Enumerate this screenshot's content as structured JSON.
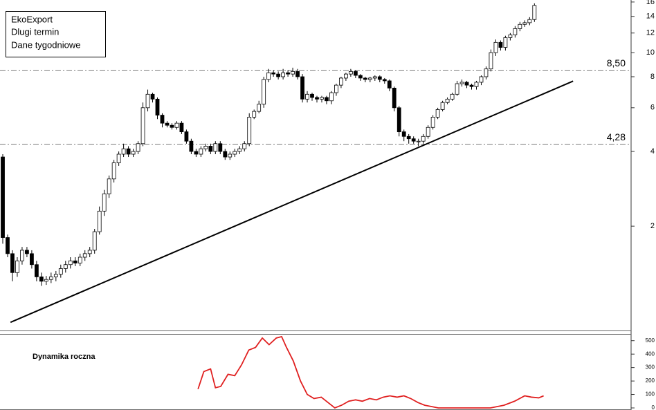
{
  "chart_data": [
    {
      "type": "candlestick",
      "title": "EkoExport",
      "subtitle": "Dlugi termin",
      "note": "Dane tygodniowe",
      "log": true,
      "xlim": [
        0,
        130
      ],
      "ylim": [
        0.76,
        16.3
      ],
      "yticks": [
        2,
        4,
        6,
        8,
        10,
        12,
        14,
        16
      ],
      "up_color": "#ffffff",
      "down_color": "#000000",
      "hlines": [
        {
          "value": 8.5,
          "label": "8,50"
        },
        {
          "value": 4.28,
          "label": "4,28"
        }
      ],
      "trendline": {
        "x": [
          1.6,
          118
        ],
        "values": [
          0.82,
          7.68
        ]
      },
      "open": [
        3.8,
        1.8,
        1.55,
        1.3,
        1.45,
        1.6,
        1.55,
        1.4,
        1.25,
        1.2,
        1.22,
        1.25,
        1.28,
        1.35,
        1.4,
        1.45,
        1.42,
        1.5,
        1.55,
        1.6,
        1.9,
        2.3,
        2.7,
        3.1,
        3.6,
        3.9,
        4.1,
        3.9,
        4.0,
        4.3,
        6.0,
        6.8,
        6.5,
        5.6,
        5.2,
        5.1,
        5.0,
        5.2,
        4.8,
        4.4,
        4.0,
        3.9,
        4.1,
        4.2,
        4.0,
        4.3,
        4.0,
        3.8,
        3.9,
        4.0,
        4.1,
        4.3,
        5.5,
        5.8,
        6.2,
        7.8,
        8.3,
        8.2,
        8.0,
        8.3,
        8.2,
        8.4,
        8.0,
        6.5,
        6.8,
        6.6,
        6.5,
        6.6,
        6.4,
        6.9,
        7.4,
        7.9,
        8.2,
        8.4,
        8.1,
        7.9,
        7.8,
        7.9,
        8.0,
        7.8,
        7.7,
        7.2,
        6.0,
        4.8,
        4.6,
        4.5,
        4.4,
        4.4,
        4.6,
        5.0,
        5.5,
        5.9,
        6.3,
        6.5,
        6.8,
        7.5,
        7.6,
        7.4,
        7.3,
        7.6,
        8.0,
        8.6,
        10.0,
        11.0,
        10.5,
        11.5,
        11.8,
        12.5,
        13.0,
        13.2,
        13.6
      ],
      "high": [
        3.9,
        1.85,
        1.6,
        1.5,
        1.65,
        1.65,
        1.6,
        1.45,
        1.3,
        1.26,
        1.3,
        1.32,
        1.4,
        1.45,
        1.5,
        1.5,
        1.55,
        1.6,
        1.65,
        1.95,
        2.4,
        2.8,
        3.2,
        3.7,
        4.0,
        4.3,
        4.2,
        4.1,
        4.4,
        6.3,
        7.1,
        6.9,
        6.6,
        5.7,
        5.3,
        5.2,
        5.3,
        5.3,
        4.9,
        4.5,
        4.1,
        4.2,
        4.3,
        4.3,
        4.4,
        4.4,
        4.1,
        4.0,
        4.1,
        4.2,
        4.4,
        5.7,
        5.9,
        6.4,
        8.0,
        8.6,
        8.5,
        8.4,
        8.6,
        8.5,
        8.7,
        8.6,
        8.2,
        7.0,
        6.9,
        6.7,
        6.7,
        6.7,
        7.0,
        7.5,
        8.0,
        8.3,
        8.6,
        8.5,
        8.2,
        8.0,
        8.0,
        8.1,
        8.1,
        7.9,
        7.8,
        7.3,
        6.1,
        4.9,
        4.7,
        4.6,
        4.5,
        4.7,
        5.1,
        5.6,
        6.0,
        6.4,
        6.6,
        6.9,
        7.7,
        7.8,
        7.7,
        7.5,
        7.7,
        8.1,
        8.8,
        10.3,
        11.3,
        11.2,
        11.7,
        12.0,
        12.8,
        13.3,
        13.5,
        13.9,
        15.8
      ],
      "low": [
        1.7,
        1.5,
        1.2,
        1.25,
        1.4,
        1.5,
        1.35,
        1.2,
        1.15,
        1.16,
        1.18,
        1.2,
        1.24,
        1.3,
        1.35,
        1.38,
        1.38,
        1.45,
        1.5,
        1.55,
        1.85,
        2.2,
        2.6,
        3.0,
        3.5,
        3.8,
        3.8,
        3.8,
        3.9,
        4.2,
        5.8,
        6.3,
        5.4,
        5.0,
        5.0,
        4.9,
        4.9,
        4.7,
        4.3,
        3.9,
        3.8,
        3.8,
        4.0,
        3.9,
        3.9,
        3.9,
        3.7,
        3.7,
        3.8,
        3.9,
        4.0,
        4.2,
        5.4,
        5.7,
        6.0,
        7.6,
        8.0,
        7.8,
        7.8,
        8.0,
        8.0,
        7.8,
        6.3,
        6.3,
        6.4,
        6.3,
        6.3,
        6.2,
        6.2,
        6.7,
        7.2,
        7.7,
        8.0,
        7.9,
        7.7,
        7.6,
        7.6,
        7.7,
        7.6,
        7.5,
        7.0,
        5.8,
        4.6,
        4.4,
        4.3,
        4.3,
        4.2,
        4.3,
        4.5,
        4.9,
        5.4,
        5.8,
        6.2,
        6.4,
        6.7,
        7.3,
        7.2,
        7.1,
        7.1,
        7.4,
        7.8,
        8.4,
        9.7,
        10.2,
        10.2,
        11.2,
        11.5,
        12.2,
        12.7,
        12.9,
        13.3
      ],
      "close": [
        1.8,
        1.55,
        1.3,
        1.45,
        1.6,
        1.55,
        1.4,
        1.25,
        1.2,
        1.22,
        1.25,
        1.28,
        1.35,
        1.4,
        1.45,
        1.42,
        1.5,
        1.55,
        1.6,
        1.9,
        2.3,
        2.7,
        3.1,
        3.6,
        3.9,
        4.1,
        3.9,
        4.0,
        4.3,
        6.0,
        6.8,
        6.5,
        5.6,
        5.2,
        5.1,
        5.0,
        5.2,
        4.8,
        4.4,
        4.0,
        3.9,
        4.1,
        4.2,
        4.0,
        4.3,
        4.0,
        3.8,
        3.9,
        4.0,
        4.1,
        4.3,
        5.5,
        5.8,
        6.2,
        7.8,
        8.3,
        8.2,
        8.0,
        8.3,
        8.2,
        8.4,
        8.0,
        6.5,
        6.8,
        6.6,
        6.5,
        6.6,
        6.4,
        6.9,
        7.4,
        7.9,
        8.2,
        8.4,
        8.1,
        7.9,
        7.8,
        7.9,
        8.0,
        7.8,
        7.7,
        7.2,
        6.0,
        4.8,
        4.6,
        4.5,
        4.4,
        4.4,
        4.6,
        5.0,
        5.5,
        5.9,
        6.3,
        6.5,
        6.8,
        7.5,
        7.6,
        7.4,
        7.3,
        7.6,
        8.0,
        8.6,
        10.0,
        11.0,
        10.5,
        11.5,
        11.8,
        12.5,
        13.0,
        13.2,
        13.6,
        15.5
      ]
    },
    {
      "type": "line",
      "title": "Dynamika roczna",
      "color": "#e02020",
      "xlim": [
        0,
        130
      ],
      "ylim": [
        0,
        550
      ],
      "yticks": [
        0,
        100,
        200,
        300,
        400,
        500
      ],
      "x": [
        40.4,
        41.6,
        43,
        44,
        45.1,
        46.6,
        48,
        49.4,
        50.9,
        52.3,
        53.7,
        55.1,
        56.6,
        57.7,
        58.7,
        60.1,
        61.6,
        63,
        64.4,
        65.9,
        67.3,
        68.7,
        70.1,
        71.6,
        73,
        74.4,
        75.9,
        77.3,
        78.7,
        80.1,
        81.6,
        83,
        84.4,
        85.9,
        87.3,
        88.7,
        90.1,
        93.7,
        98,
        100.9,
        103.7,
        105.9,
        108,
        109.4,
        110.9,
        111.9
      ],
      "values": [
        140,
        270,
        290,
        150,
        160,
        250,
        240,
        320,
        430,
        450,
        520,
        470,
        520,
        530,
        450,
        350,
        200,
        100,
        70,
        80,
        40,
        0,
        20,
        50,
        60,
        50,
        70,
        60,
        80,
        90,
        80,
        90,
        70,
        40,
        20,
        10,
        0,
        0,
        0,
        0,
        20,
        50,
        90,
        80,
        75,
        90
      ]
    }
  ]
}
